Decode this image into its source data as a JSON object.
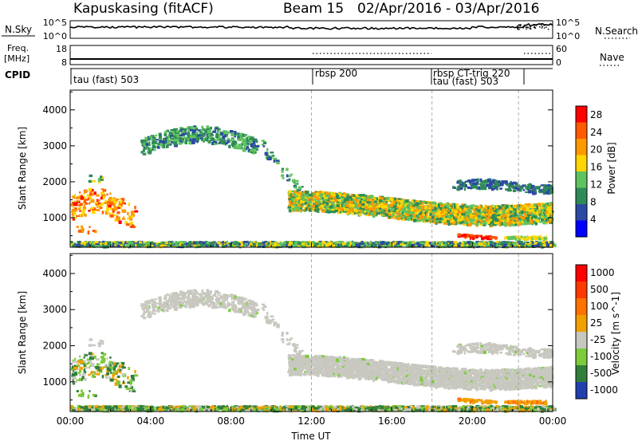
{
  "header": {
    "station": "Kapuskasing (fitACF)",
    "beam": "Beam 15",
    "date_range": "02/Apr/2016 - 03/Apr/2016"
  },
  "noise_panel": {
    "left_label": "N.Sky",
    "left_ticks": [
      "10^5",
      "10^0"
    ],
    "right_ticks": [
      "10^5",
      "10^0"
    ],
    "right_label": "N.Search"
  },
  "freq_panel": {
    "left_label_1": "Freq.",
    "left_label_2": "[MHz]",
    "left_ticks": [
      "18",
      "8"
    ],
    "right_ticks": [
      "60",
      "0"
    ],
    "right_label": "Nave"
  },
  "cpid": {
    "label": "CPID",
    "segments": [
      {
        "start_hour": 0.0,
        "name": "tau (fast) 503"
      },
      {
        "start_hour": 12.0,
        "name": "rbsp 200"
      },
      {
        "start_hour": 18.0,
        "name": "rbsp CT-trig 220"
      },
      {
        "start_hour": 18.0,
        "name": "tau (fast) 503"
      }
    ]
  },
  "colors": {
    "power_scale": [
      "#0000ff",
      "#2c49a3",
      "#2e8b57",
      "#5fc45f",
      "#ffd700",
      "#ff9900",
      "#ff5a00",
      "#ff0000"
    ],
    "velocity_scale": [
      "#2040b0",
      "#2f7f3a",
      "#7ccc3c",
      "#c8c8c0",
      "#f2a000",
      "#ff7200",
      "#ff3a00",
      "#ff0000"
    ],
    "ground_scatter": "#c8c8c0"
  },
  "chart_data": [
    {
      "type": "heatmap",
      "title": "",
      "xlabel": "",
      "ylabel": "Slant Range [km]",
      "xlim": [
        0,
        24
      ],
      "ylim": [
        180,
        4550
      ],
      "yticks": [
        "1000",
        "2000",
        "3000",
        "4000"
      ],
      "colorbar": {
        "label": "Power [dB]",
        "ticks": [
          "28",
          "24",
          "20",
          "16",
          "12",
          "8",
          "4"
        ],
        "range": [
          0,
          30
        ]
      }
    },
    {
      "type": "heatmap",
      "title": "",
      "xlabel": "Time UT",
      "ylabel": "Slant Range [km]",
      "xlim": [
        0,
        24
      ],
      "ylim": [
        180,
        4550
      ],
      "xticks": [
        "00:00",
        "04:00",
        "08:00",
        "12:00",
        "16:00",
        "20:00",
        "00:00"
      ],
      "yticks": [
        "1000",
        "2000",
        "3000",
        "4000"
      ],
      "colorbar": {
        "label": "Velocity [m s^-1]",
        "ticks": [
          "1000",
          "500",
          "100",
          "25",
          "-25",
          "-100",
          "-500",
          "-1000"
        ]
      }
    }
  ]
}
